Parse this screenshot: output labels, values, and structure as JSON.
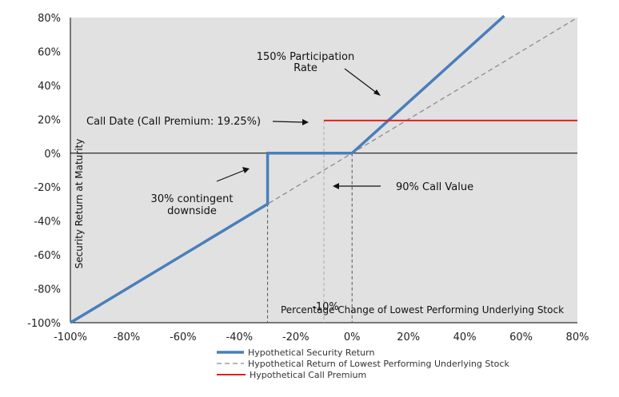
{
  "chart_data": {
    "type": "line",
    "xlabel": "Percentage Change of Lowest Performing Underlying Stock",
    "ylabel": "Security Return at Maturity",
    "xlim": [
      -100,
      80
    ],
    "ylim": [
      -100,
      80
    ],
    "x_ticks": [
      "-100%",
      "-80%",
      "-60%",
      "-40%",
      "-20%",
      "0%",
      "20%",
      "40%",
      "60%",
      "80%"
    ],
    "y_ticks": [
      "80%",
      "60%",
      "40%",
      "20%",
      "0%",
      "-20%",
      "-40%",
      "-60%",
      "-80%",
      "-100%"
    ],
    "grid": false,
    "legend_position": "bottom",
    "series": [
      {
        "name": "Hypothetical Security Return",
        "color": "#4a7ebb",
        "style": "solid",
        "points": [
          [
            -100,
            -100
          ],
          [
            -30,
            -30
          ],
          [
            -30,
            0
          ],
          [
            0,
            0
          ],
          [
            54,
            81
          ]
        ]
      },
      {
        "name": "Hypothetical Return of Lowest Performing Underlying Stock",
        "color": "#8c8c8c",
        "style": "dashed",
        "points": [
          [
            -100,
            -100
          ],
          [
            80,
            80
          ]
        ]
      },
      {
        "name": "Hypothetical Call Premium",
        "color": "#e02020",
        "style": "solid",
        "points": [
          [
            -10,
            19.25
          ],
          [
            80,
            19.25
          ]
        ]
      }
    ],
    "annotations": {
      "participation": [
        "150% Participation",
        "Rate"
      ],
      "call_date": "Call Date (Call Premium: 19.25%)",
      "downside": [
        "30% contingent",
        "downside"
      ],
      "call_value": "90% Call Value",
      "minus10": "-10%"
    }
  }
}
